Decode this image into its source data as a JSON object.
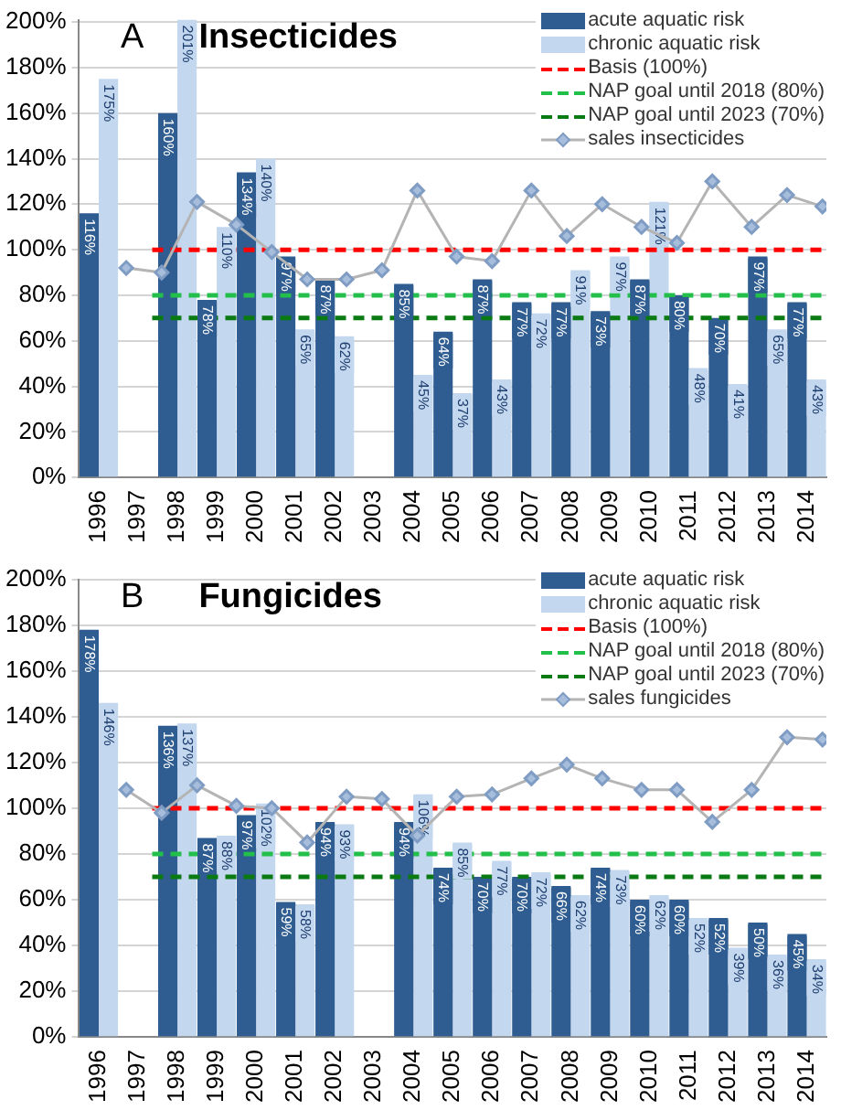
{
  "chart_data": [
    {
      "type": "bar",
      "title": "Insecticides",
      "annotations": [
        "A"
      ],
      "x": [
        1996,
        1997,
        1998,
        1999,
        2000,
        2001,
        2002,
        2003,
        2004,
        2005,
        2006,
        2007,
        2008,
        2009,
        2010,
        2011,
        2012,
        2013,
        2014
      ],
      "xlim": [
        1995.5,
        2014.5
      ],
      "xticks": [
        1996,
        1997,
        1998,
        1999,
        2000,
        2001,
        2002,
        2003,
        2004,
        2005,
        2006,
        2007,
        2008,
        2009,
        2010,
        2011,
        2012,
        2013,
        2014
      ],
      "ylim": [
        0,
        201
      ],
      "yticks": [
        {
          "value": 0,
          "label": "0%"
        },
        {
          "value": 20,
          "label": "20%"
        },
        {
          "value": 40,
          "label": "40%"
        },
        {
          "value": 60,
          "label": "60%"
        },
        {
          "value": 80,
          "label": "80%"
        },
        {
          "value": 100,
          "label": "100%"
        },
        {
          "value": 120,
          "label": "120%"
        },
        {
          "value": 140,
          "label": "140%"
        },
        {
          "value": 160,
          "label": "160%"
        },
        {
          "value": 180,
          "label": "180%"
        },
        {
          "value": 200,
          "label": "200%"
        }
      ],
      "grid": "y",
      "legend": "top right",
      "series": [
        {
          "name": "acute aquatic risk",
          "color": "#2f5d91",
          "values": [
            116,
            null,
            160,
            78,
            134,
            97,
            87,
            null,
            85,
            64,
            87,
            77,
            77,
            73,
            87,
            80,
            70,
            97,
            77
          ],
          "value_labels": [
            "116%",
            null,
            "160%",
            "78%",
            "134%",
            "97%",
            "87%",
            null,
            "85%",
            "64%",
            "87%",
            "77%",
            "77%",
            "73%",
            "87%",
            "80%",
            "70%",
            "97%",
            "77%"
          ]
        },
        {
          "name": "chronic aquatic risk",
          "color": "#c3d7ef",
          "values": [
            175,
            null,
            201,
            110,
            140,
            65,
            62,
            null,
            45,
            37,
            43,
            72,
            91,
            97,
            121,
            48,
            41,
            65,
            43
          ],
          "value_labels": [
            "175%",
            null,
            "201%",
            "110%",
            "140%",
            "65%",
            "62%",
            null,
            "45%",
            "37%",
            "43%",
            "72%",
            "91%",
            "97%",
            "121%",
            "48%",
            "41%",
            "65%",
            "43%"
          ]
        },
        {
          "name": "sales insecticides",
          "type": "line",
          "color": "#b4b4b4",
          "marker": "diamond",
          "x": [
            1996.7,
            1997.6,
            1998.5,
            1999.5,
            2000.4,
            2001.3,
            2002.3,
            2003.2,
            2004.1,
            2005.1,
            2006.0,
            2007.0,
            2007.9,
            2008.8,
            2009.8,
            2010.7,
            2011.6,
            2012.6,
            2013.5,
            2014.4
          ],
          "values": [
            92,
            90,
            121,
            111,
            99,
            87,
            87,
            91,
            126,
            97,
            95,
            126,
            106,
            120,
            110,
            103,
            130,
            110,
            124,
            119
          ]
        }
      ],
      "ref_lines": [
        {
          "axis": "y",
          "value": 100,
          "label": "Basis (100%)",
          "color": "#ff0000",
          "line_style": "dashed"
        },
        {
          "axis": "y",
          "value": 80,
          "label": "NAP goal until 2018 (80%)",
          "color": "#22c04a",
          "line_style": "dashed"
        },
        {
          "axis": "y",
          "value": 70,
          "label": "NAP goal until 2023 (70%)",
          "color": "#0a7a12",
          "line_style": "dashed"
        }
      ]
    },
    {
      "type": "bar",
      "title": "Fungicides",
      "annotations": [
        "B"
      ],
      "x": [
        1996,
        1997,
        1998,
        1999,
        2000,
        2001,
        2002,
        2003,
        2004,
        2005,
        2006,
        2007,
        2008,
        2009,
        2010,
        2011,
        2012,
        2013,
        2014
      ],
      "xlim": [
        1995.5,
        2014.5
      ],
      "xticks": [
        1996,
        1997,
        1998,
        1999,
        2000,
        2001,
        2002,
        2003,
        2004,
        2005,
        2006,
        2007,
        2008,
        2009,
        2010,
        2011,
        2012,
        2013,
        2014
      ],
      "ylim": [
        0,
        200
      ],
      "yticks": [
        {
          "value": 0,
          "label": "0%"
        },
        {
          "value": 20,
          "label": "20%"
        },
        {
          "value": 40,
          "label": "40%"
        },
        {
          "value": 60,
          "label": "60%"
        },
        {
          "value": 80,
          "label": "80%"
        },
        {
          "value": 100,
          "label": "100%"
        },
        {
          "value": 120,
          "label": "120%"
        },
        {
          "value": 140,
          "label": "140%"
        },
        {
          "value": 160,
          "label": "160%"
        },
        {
          "value": 180,
          "label": "180%"
        },
        {
          "value": 200,
          "label": "200%"
        }
      ],
      "grid": "y",
      "legend": "top right",
      "series": [
        {
          "name": "acute aquatic risk",
          "color": "#2f5d91",
          "values": [
            178,
            null,
            136,
            87,
            97,
            59,
            94,
            null,
            94,
            74,
            70,
            70,
            66,
            74,
            60,
            60,
            52,
            50,
            45
          ],
          "value_labels": [
            "178%",
            null,
            "136%",
            "87%",
            "97%",
            "59%",
            "94%",
            null,
            "94%",
            "74%",
            "70%",
            "70%",
            "66%",
            "74%",
            "60%",
            "60%",
            "52%",
            "50%",
            "45%"
          ]
        },
        {
          "name": "chronic aquatic risk",
          "color": "#c3d7ef",
          "values": [
            146,
            null,
            137,
            88,
            102,
            58,
            93,
            null,
            106,
            85,
            77,
            72,
            62,
            73,
            62,
            52,
            39,
            36,
            34
          ],
          "value_labels": [
            "146%",
            null,
            "137%",
            "88%",
            "102%",
            "58%",
            "93%",
            null,
            "106%",
            "85%",
            "77%",
            "72%",
            "62%",
            "73%",
            "62%",
            "52%",
            "39%",
            "36%",
            "34%"
          ]
        },
        {
          "name": "sales fungicides",
          "type": "line",
          "color": "#b4b4b4",
          "marker": "diamond",
          "x": [
            1996.7,
            1997.6,
            1998.5,
            1999.5,
            2000.4,
            2001.3,
            2002.3,
            2003.2,
            2004.1,
            2005.1,
            2006.0,
            2007.0,
            2007.9,
            2008.8,
            2009.8,
            2010.7,
            2011.6,
            2012.6,
            2013.5,
            2014.4
          ],
          "values": [
            108,
            98,
            110,
            101,
            100,
            85,
            105,
            104,
            88,
            105,
            106,
            113,
            119,
            113,
            108,
            108,
            94,
            108,
            131,
            130
          ]
        }
      ],
      "ref_lines": [
        {
          "axis": "y",
          "value": 100,
          "label": "Basis (100%)",
          "color": "#ff0000",
          "line_style": "dashed"
        },
        {
          "axis": "y",
          "value": 80,
          "label": "NAP goal until 2018 (80%)",
          "color": "#22c04a",
          "line_style": "dashed"
        },
        {
          "axis": "y",
          "value": 70,
          "label": "NAP goal until 2023 (70%)",
          "color": "#0a7a12",
          "line_style": "dashed"
        }
      ]
    }
  ]
}
